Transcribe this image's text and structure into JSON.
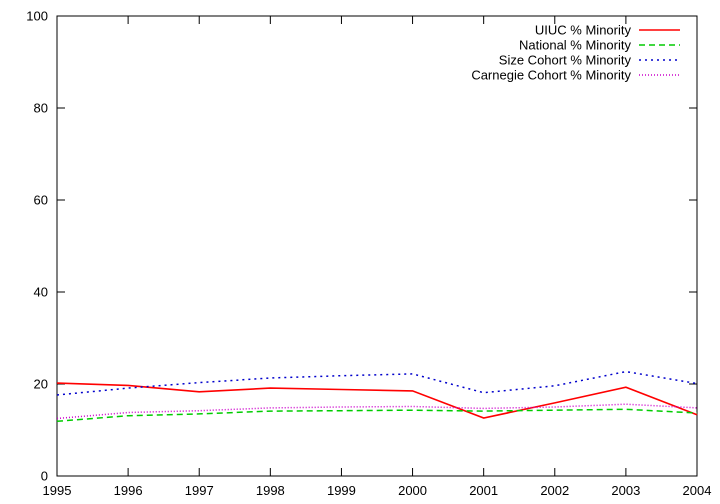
{
  "chart_data": {
    "type": "line",
    "title": "",
    "xlabel": "",
    "ylabel": "",
    "x": [
      1995,
      1996,
      1997,
      1998,
      1999,
      2000,
      2001,
      2002,
      2003,
      2004
    ],
    "xlim": [
      1995,
      2004
    ],
    "ylim": [
      0,
      100
    ],
    "xticks": [
      1995,
      1996,
      1997,
      1998,
      1999,
      2000,
      2001,
      2002,
      2003,
      2004
    ],
    "yticks": [
      0,
      20,
      40,
      60,
      80,
      100
    ],
    "grid": false,
    "legend_position": "top-right",
    "series": [
      {
        "name": "UIUC % Minority",
        "color": "#ff0000",
        "dash": "solid",
        "values": [
          20.2,
          19.7,
          18.3,
          19.1,
          18.8,
          18.5,
          12.6,
          15.9,
          19.3,
          13.3
        ]
      },
      {
        "name": "National % Minority",
        "color": "#00cc00",
        "dash": "dashed",
        "values": [
          11.9,
          13.1,
          13.5,
          14.1,
          14.2,
          14.3,
          14.1,
          14.3,
          14.5,
          13.7
        ]
      },
      {
        "name": "Size Cohort % Minority",
        "color": "#0000cc",
        "dash": "dotted",
        "values": [
          17.6,
          19.1,
          20.3,
          21.3,
          21.8,
          22.2,
          18.1,
          19.6,
          22.7,
          20.1
        ]
      },
      {
        "name": "Carnegie Cohort % Minority",
        "color": "#cc00cc",
        "dash": "fine-dotted",
        "values": [
          12.5,
          13.8,
          14.2,
          14.8,
          15.0,
          15.1,
          14.7,
          15.0,
          15.6,
          14.8
        ]
      }
    ]
  }
}
